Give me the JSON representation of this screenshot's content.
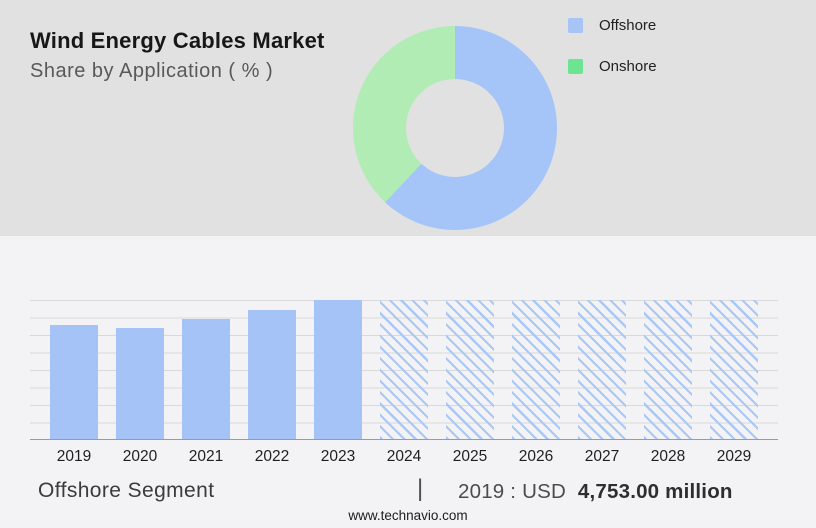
{
  "header": {
    "title": "Wind Energy Cables Market",
    "subtitle": "Share by Application ( % )"
  },
  "legend": {
    "items": [
      {
        "label": "Offshore",
        "color": "#a6c4f5"
      },
      {
        "label": "Onshore",
        "color": "#6ee391"
      }
    ]
  },
  "chart_data": [
    {
      "type": "pie",
      "title": "Share by Application ( % )",
      "labels": [
        "Offshore",
        "Onshore"
      ],
      "values_pct": [
        62,
        38
      ],
      "colors": [
        "#a5c4f8",
        "#b2ecb5"
      ],
      "donut_hole_ratio": 0.48,
      "start_angle_deg": 0,
      "direction": "clockwise",
      "legend_position": "top-right"
    },
    {
      "type": "bar",
      "categories": [
        "2019",
        "2020",
        "2021",
        "2022",
        "2023",
        "2024",
        "2025",
        "2026",
        "2027",
        "2028",
        "2029"
      ],
      "values_pct_of_max": [
        82,
        80,
        86,
        93,
        100,
        100,
        100,
        100,
        100,
        100,
        100
      ],
      "forecast_hatched": [
        false,
        false,
        false,
        false,
        false,
        true,
        true,
        true,
        true,
        true,
        true
      ],
      "bar_color": "#a5c3f7",
      "hatch_color": "#aac8f6",
      "known_value": {
        "year": "2019",
        "value": "USD 4,753.00 million"
      },
      "xlabel": "",
      "ylabel": "",
      "grid": true,
      "yaxis_tick_labels": false
    }
  ],
  "footer": {
    "segment_label": "Offshore Segment",
    "divider": "|",
    "value_prefix": "2019 : USD",
    "value_bold": "4,753.00 million",
    "website": "www.technavio.com"
  },
  "colors": {
    "top_background": "#e1e1e2",
    "bottom_background": "#f3f3f5",
    "gridline": "#d9d9d9",
    "axis_line": "#9b9b9b"
  }
}
